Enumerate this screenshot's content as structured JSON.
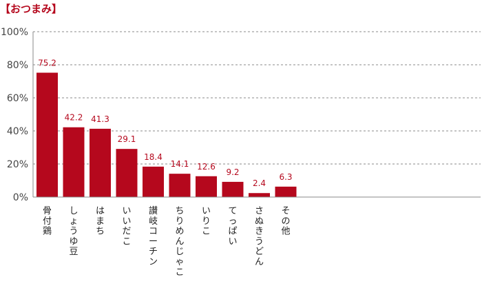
{
  "chart_data": {
    "type": "bar",
    "title": "【おつまみ】",
    "categories": [
      "骨付鶏",
      "しょうゆ豆",
      "はまち",
      "いいだこ",
      "讃岐コーチン",
      "ちりめんじゃこ",
      "いりこ",
      "てっぱい",
      "さぬきうどん",
      "その他"
    ],
    "values": [
      75.2,
      42.2,
      41.3,
      29.1,
      18.4,
      14.1,
      12.6,
      9.2,
      2.4,
      6.3
    ],
    "value_labels": [
      "75.2",
      "42.2",
      "41.3",
      "29.1",
      "18.4",
      "14.1",
      "12.6",
      "9.2",
      "2.4",
      "6.3"
    ],
    "ylim": [
      0,
      100
    ],
    "yticks": [
      0,
      20,
      40,
      60,
      80,
      100
    ],
    "ytick_labels": [
      "0%",
      "20%",
      "40%",
      "60%",
      "80%",
      "100%"
    ],
    "xlabel": "",
    "ylabel": "",
    "grid": true,
    "colors": {
      "bar": "#b5081d",
      "label": "#b5081d",
      "grid": "#888888",
      "axis": "#888888"
    }
  }
}
